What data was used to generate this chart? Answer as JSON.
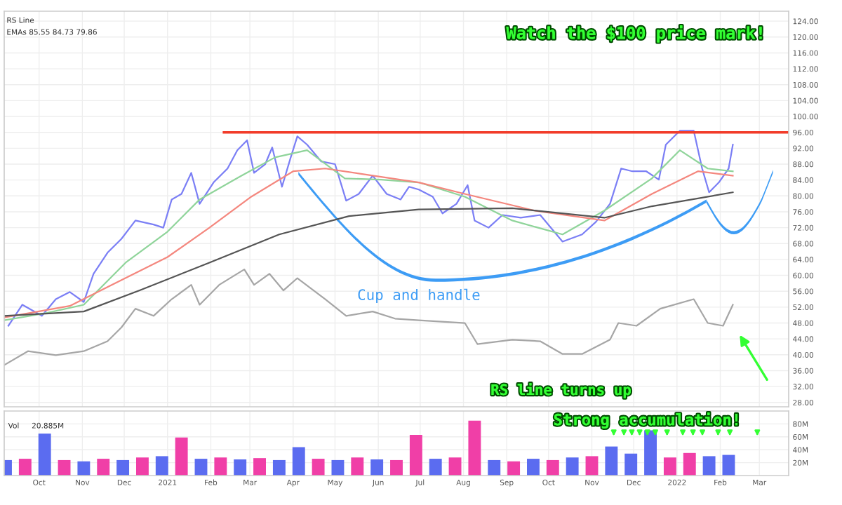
{
  "chart_data": [
    {
      "type": "line",
      "annotations": [
        "Watch the $100 price mark!",
        "Cup and handle",
        "RS line turns up",
        "RS Line",
        "EMAs 85.55 84.73 79.86"
      ],
      "xlim": [
        "2020-09-06",
        "2022-03-22"
      ],
      "ylim": [
        26.9,
        126.5
      ],
      "yticks": [
        {
          "value": 28,
          "label": "28.00"
        },
        {
          "value": 32,
          "label": "32.00"
        },
        {
          "value": 36,
          "label": "36.00"
        },
        {
          "value": 40,
          "label": "40.00"
        },
        {
          "value": 44,
          "label": "44.00"
        },
        {
          "value": 48,
          "label": "48.00"
        },
        {
          "value": 52,
          "label": "52.00"
        },
        {
          "value": 56,
          "label": "56.00"
        },
        {
          "value": 60,
          "label": "60.00"
        },
        {
          "value": 64,
          "label": "64.00"
        },
        {
          "value": 68,
          "label": "68.00"
        },
        {
          "value": 72,
          "label": "72.00"
        },
        {
          "value": 76,
          "label": "76.00"
        },
        {
          "value": 80,
          "label": "80.00"
        },
        {
          "value": 84,
          "label": "84.00"
        },
        {
          "value": 88,
          "label": "88.00"
        },
        {
          "value": 92,
          "label": "92.00"
        },
        {
          "value": 96,
          "label": "96.00"
        },
        {
          "value": 100,
          "label": "100.00"
        },
        {
          "value": 104,
          "label": "104.00"
        },
        {
          "value": 108,
          "label": "108.00"
        },
        {
          "value": 112,
          "label": "112.00"
        },
        {
          "value": 116,
          "label": "116.00"
        },
        {
          "value": 120,
          "label": "120.00"
        },
        {
          "value": 124,
          "label": "124.00"
        }
      ],
      "tick_labels": "y",
      "grid": true,
      "ref_lines": [
        {
          "axis": "y",
          "value": 96,
          "color": "#f23c2a",
          "label": null
        }
      ],
      "series": [
        {
          "color": "#7b7ff5",
          "x": [
            "2020-09-09",
            "2020-09-19",
            "2020-10-03",
            "2020-10-13",
            "2020-10-23",
            "2020-11-02",
            "2020-11-09",
            "2020-11-19",
            "2020-11-29",
            "2020-12-09",
            "2020-12-22",
            "2020-12-29",
            "2021-01-04",
            "2021-01-11",
            "2021-01-18",
            "2021-01-24",
            "2021-02-03",
            "2021-02-13",
            "2021-02-20",
            "2021-02-27",
            "2021-03-04",
            "2021-03-12",
            "2021-03-17",
            "2021-03-24",
            "2021-03-30",
            "2021-04-04",
            "2021-04-11",
            "2021-04-21",
            "2021-05-01",
            "2021-05-09",
            "2021-05-18",
            "2021-05-28",
            "2021-06-07",
            "2021-06-17",
            "2021-06-23",
            "2021-06-30",
            "2021-07-10",
            "2021-07-17",
            "2021-07-27",
            "2021-08-04",
            "2021-08-09",
            "2021-08-19",
            "2021-08-29",
            "2021-09-11",
            "2021-09-25",
            "2021-10-05",
            "2021-10-11",
            "2021-10-25",
            "2021-11-04",
            "2021-11-14",
            "2021-11-22",
            "2021-11-30",
            "2021-12-10",
            "2021-12-19",
            "2021-12-24",
            "2022-01-03",
            "2022-01-13",
            "2022-01-19",
            "2022-01-24",
            "2022-01-31",
            "2022-02-07",
            "2022-02-10"
          ],
          "values": [
            47.3,
            52.6,
            49.8,
            54,
            55.8,
            53.3,
            60.4,
            65.7,
            69.2,
            73.8,
            72.8,
            72,
            79.1,
            80.5,
            85.8,
            78,
            83.4,
            86.9,
            91.5,
            94,
            85.8,
            88,
            92.2,
            82.3,
            89.4,
            95,
            92.9,
            88.7,
            88,
            78.8,
            80.5,
            85.1,
            80.5,
            79.1,
            82.3,
            81.6,
            79.8,
            75.6,
            78,
            82.7,
            73.8,
            72,
            75.2,
            74.5,
            75.2,
            71,
            68.5,
            70.3,
            73.5,
            78,
            86.9,
            86.2,
            86.2,
            84.1,
            92.9,
            96.4,
            96.4,
            86.9,
            80.9,
            83.4,
            86.9,
            92.9
          ]
        },
        {
          "color": "#8fd49a",
          "x": [
            "2020-09-06",
            "2020-10-06",
            "2020-11-02",
            "2020-12-02",
            "2021-01-01",
            "2021-01-24",
            "2021-02-23",
            "2021-03-19",
            "2021-04-11",
            "2021-05-08",
            "2021-06-03",
            "2021-06-30",
            "2021-08-02",
            "2021-09-05",
            "2021-10-11",
            "2021-11-10",
            "2021-12-14",
            "2022-01-03",
            "2022-01-23",
            "2022-02-10"
          ],
          "values": [
            48.7,
            50.5,
            52.6,
            63.2,
            71,
            79.1,
            85.1,
            89.7,
            91.5,
            84.4,
            84.1,
            83.4,
            79.8,
            73.8,
            70.3,
            76.3,
            84.4,
            91.5,
            86.9,
            86.2
          ]
        },
        {
          "color": "#f4877e",
          "x": [
            "2020-09-06",
            "2020-10-23",
            "2020-11-22",
            "2021-01-01",
            "2021-01-31",
            "2021-03-02",
            "2021-04-01",
            "2021-04-24",
            "2021-05-28",
            "2021-06-30",
            "2021-08-02",
            "2021-09-21",
            "2021-11-10",
            "2021-12-14",
            "2022-01-16",
            "2022-02-10"
          ],
          "values": [
            49.4,
            52.3,
            57.6,
            64.6,
            72,
            79.8,
            86.2,
            86.9,
            85.1,
            83.4,
            80.5,
            76.3,
            73.8,
            80.5,
            86.2,
            85.1
          ]
        },
        {
          "color": "#555555",
          "x": [
            "2020-09-06",
            "2020-11-02",
            "2020-12-12",
            "2021-01-31",
            "2021-03-22",
            "2021-05-11",
            "2021-06-30",
            "2021-09-05",
            "2021-11-10",
            "2021-12-14",
            "2022-02-10"
          ],
          "values": [
            49.8,
            50.9,
            56.2,
            63.2,
            70.3,
            74.9,
            76.6,
            76.9,
            74.5,
            77.4,
            80.9
          ]
        },
        {
          "color": "#a6a6a6",
          "x": [
            "2020-09-06",
            "2020-09-23",
            "2020-10-13",
            "2020-11-02",
            "2020-11-19",
            "2020-11-29",
            "2020-12-09",
            "2020-12-22",
            "2021-01-04",
            "2021-01-18",
            "2021-01-24",
            "2021-02-07",
            "2021-02-25",
            "2021-03-04",
            "2021-03-15",
            "2021-03-25",
            "2021-04-04",
            "2021-04-24",
            "2021-05-09",
            "2021-05-28",
            "2021-06-13",
            "2021-06-30",
            "2021-08-02",
            "2021-08-11",
            "2021-09-05",
            "2021-09-25",
            "2021-10-11",
            "2021-10-25",
            "2021-11-14",
            "2021-11-20",
            "2021-12-03",
            "2021-12-20",
            "2022-01-13",
            "2022-01-23",
            "2022-02-03",
            "2022-02-10"
          ],
          "values": [
            37.4,
            40.9,
            39.9,
            40.9,
            43.4,
            46.9,
            51.6,
            49.8,
            54,
            57.6,
            52.6,
            57.6,
            61.5,
            57.6,
            60.4,
            56.2,
            59.3,
            54,
            49.8,
            50.9,
            49.1,
            48.7,
            48,
            42.7,
            43.8,
            43.4,
            40.2,
            40.2,
            43.8,
            48,
            47.3,
            51.6,
            54,
            48,
            47.3,
            52.6
          ]
        }
      ]
    },
    {
      "type": "bar",
      "annotations": [
        "Vol",
        "20.885M",
        "Strong accumulation!"
      ],
      "xlim": [
        "2020-09-06",
        "2022-03-22"
      ],
      "ylim": [
        0,
        100
      ],
      "yticks": [
        {
          "value": 20,
          "label": "20M"
        },
        {
          "value": 40,
          "label": "40M"
        },
        {
          "value": 60,
          "label": "60M"
        },
        {
          "value": 80,
          "label": "80M"
        }
      ],
      "xticks": [
        {
          "value": "2020-10-01",
          "label": "Oct"
        },
        {
          "value": "2020-11-01",
          "label": "Nov"
        },
        {
          "value": "2020-12-01",
          "label": "Dec"
        },
        {
          "value": "2021-01-01",
          "label": "2021"
        },
        {
          "value": "2021-02-01",
          "label": "Feb"
        },
        {
          "value": "2021-03-01",
          "label": "Mar"
        },
        {
          "value": "2021-04-01",
          "label": "Apr"
        },
        {
          "value": "2021-05-01",
          "label": "May"
        },
        {
          "value": "2021-06-01",
          "label": "Jun"
        },
        {
          "value": "2021-07-01",
          "label": "Jul"
        },
        {
          "value": "2021-08-01",
          "label": "Aug"
        },
        {
          "value": "2021-09-01",
          "label": "Sep"
        },
        {
          "value": "2021-10-01",
          "label": "Oct"
        },
        {
          "value": "2021-11-01",
          "label": "Nov"
        },
        {
          "value": "2021-12-01",
          "label": "Dec"
        },
        {
          "value": "2022-01-01",
          "label": "2022"
        },
        {
          "value": "2022-02-01",
          "label": "Feb"
        },
        {
          "value": "2022-03-01",
          "label": "Mar"
        }
      ],
      "grid": true,
      "x": [
        "2020-09-07",
        "2020-09-21",
        "2020-10-05",
        "2020-10-19",
        "2020-11-02",
        "2020-11-16",
        "2020-11-30",
        "2020-12-14",
        "2020-12-28",
        "2021-01-11",
        "2021-01-25",
        "2021-02-08",
        "2021-02-22",
        "2021-03-08",
        "2021-03-22",
        "2021-04-05",
        "2021-04-19",
        "2021-05-03",
        "2021-05-17",
        "2021-05-31",
        "2021-06-14",
        "2021-06-28",
        "2021-07-12",
        "2021-07-26",
        "2021-08-09",
        "2021-08-23",
        "2021-09-06",
        "2021-09-20",
        "2021-10-04",
        "2021-10-18",
        "2021-11-01",
        "2021-11-15",
        "2021-11-29",
        "2021-12-13",
        "2021-12-27",
        "2022-01-10",
        "2022-01-24",
        "2022-02-07"
      ],
      "values": [
        24,
        26,
        65,
        24,
        22,
        26,
        24,
        28,
        30,
        59,
        26,
        28,
        25,
        27,
        24,
        44,
        26,
        24,
        28,
        25,
        24,
        63,
        26,
        28,
        85,
        24,
        22,
        26,
        24,
        28,
        30,
        45,
        34,
        70,
        28,
        35,
        30,
        32
      ],
      "colors": [
        "#5b6cf0",
        "#f03fa7",
        "#5b6cf0",
        "#f03fa7",
        "#5b6cf0",
        "#f03fa7",
        "#5b6cf0",
        "#f03fa7",
        "#5b6cf0",
        "#f03fa7",
        "#5b6cf0",
        "#f03fa7",
        "#5b6cf0",
        "#f03fa7",
        "#5b6cf0",
        "#5b6cf0",
        "#f03fa7",
        "#5b6cf0",
        "#f03fa7",
        "#5b6cf0",
        "#f03fa7",
        "#f03fa7",
        "#5b6cf0",
        "#f03fa7",
        "#f03fa7",
        "#5b6cf0",
        "#f03fa7",
        "#5b6cf0",
        "#f03fa7",
        "#5b6cf0",
        "#f03fa7",
        "#5b6cf0",
        "#5b6cf0",
        "#5b6cf0",
        "#f03fa7",
        "#f03fa7",
        "#5b6cf0",
        "#5b6cf0"
      ]
    }
  ]
}
